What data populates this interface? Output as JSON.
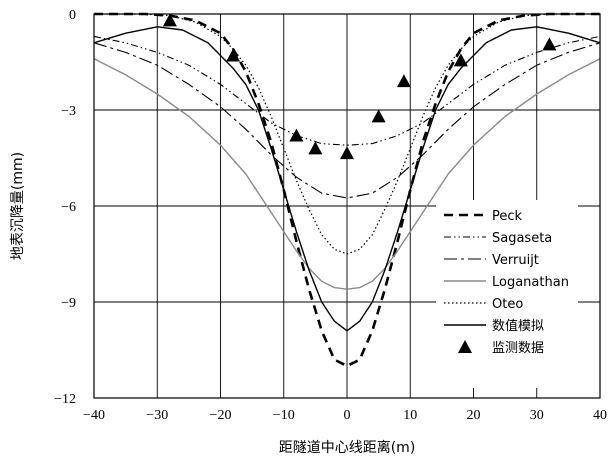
{
  "chart_data": {
    "type": "line",
    "xlabel": "距隧道中心线距离(m)",
    "ylabel": "地表沉降量(mm)",
    "xlim": [
      -40,
      40
    ],
    "ylim": [
      -12,
      0
    ],
    "x_ticks": [
      -40,
      -30,
      -20,
      -10,
      0,
      10,
      20,
      30,
      40
    ],
    "y_ticks": [
      0,
      -3,
      -6,
      -9,
      -12
    ],
    "x_tick_labels": [
      "−40",
      "−30",
      "−20",
      "−10",
      "0",
      "10",
      "20",
      "30",
      "40"
    ],
    "y_tick_labels": [
      "0",
      "−3",
      "−6",
      "−9",
      "−12"
    ],
    "grid": true,
    "legend_position": "right",
    "series": [
      {
        "name": "Peck",
        "style": "thick-dash",
        "color": "#000000",
        "x": [
          -40,
          -32,
          -28,
          -24,
          -20,
          -18,
          -16,
          -14,
          -12,
          -10,
          -8,
          -6,
          -4,
          -2,
          0,
          2,
          4,
          6,
          8,
          10,
          12,
          14,
          16,
          18,
          20,
          24,
          28,
          32,
          40
        ],
        "y": [
          0,
          0,
          -0.05,
          -0.2,
          -0.6,
          -1.1,
          -1.8,
          -2.8,
          -4.0,
          -5.5,
          -7.1,
          -8.6,
          -9.9,
          -10.8,
          -11.0,
          -10.8,
          -9.9,
          -8.6,
          -7.1,
          -5.5,
          -4.0,
          -2.8,
          -1.8,
          -1.1,
          -0.6,
          -0.2,
          -0.05,
          0,
          0
        ]
      },
      {
        "name": "Sagaseta",
        "style": "dash-dot-dot",
        "color": "#000000",
        "x": [
          -40,
          -35,
          -30,
          -25,
          -20,
          -16,
          -12,
          -8,
          -4,
          0,
          4,
          8,
          12,
          16,
          20,
          25,
          30,
          35,
          40
        ],
        "y": [
          -0.7,
          -0.9,
          -1.2,
          -1.6,
          -2.2,
          -2.8,
          -3.4,
          -3.8,
          -4.05,
          -4.1,
          -4.05,
          -3.8,
          -3.4,
          -2.8,
          -2.2,
          -1.6,
          -1.2,
          -0.9,
          -0.7
        ]
      },
      {
        "name": "Verruijt",
        "style": "long-dash-dot",
        "color": "#000000",
        "x": [
          -40,
          -35,
          -30,
          -25,
          -20,
          -16,
          -12,
          -8,
          -4,
          0,
          4,
          8,
          12,
          16,
          20,
          25,
          30,
          35,
          40
        ],
        "y": [
          -0.9,
          -1.2,
          -1.6,
          -2.2,
          -2.9,
          -3.6,
          -4.4,
          -5.1,
          -5.6,
          -5.75,
          -5.6,
          -5.1,
          -4.4,
          -3.6,
          -2.9,
          -2.2,
          -1.6,
          -1.2,
          -0.9
        ]
      },
      {
        "name": "Loganathan",
        "style": "solid-gray",
        "color": "#8a8a8a",
        "x": [
          -40,
          -35,
          -30,
          -25,
          -20,
          -16,
          -12,
          -8,
          -6,
          -4,
          -2,
          0,
          2,
          4,
          6,
          8,
          12,
          16,
          20,
          25,
          30,
          35,
          40
        ],
        "y": [
          -1.4,
          -1.9,
          -2.5,
          -3.2,
          -4.1,
          -5.0,
          -6.2,
          -7.4,
          -7.95,
          -8.35,
          -8.55,
          -8.6,
          -8.55,
          -8.35,
          -7.95,
          -7.4,
          -6.2,
          -5.0,
          -4.1,
          -3.2,
          -2.5,
          -1.9,
          -1.4
        ]
      },
      {
        "name": "Oteo",
        "style": "dotted",
        "color": "#000000",
        "x": [
          -40,
          -32,
          -28,
          -24,
          -20,
          -18,
          -16,
          -14,
          -12,
          -10,
          -8,
          -6,
          -4,
          -2,
          0,
          2,
          4,
          6,
          8,
          10,
          12,
          14,
          16,
          18,
          20,
          24,
          28,
          32,
          40
        ],
        "y": [
          0,
          0,
          -0.05,
          -0.25,
          -0.7,
          -1.1,
          -1.6,
          -2.3,
          -3.2,
          -4.2,
          -5.2,
          -6.1,
          -6.9,
          -7.35,
          -7.5,
          -7.35,
          -6.9,
          -6.1,
          -5.2,
          -4.2,
          -3.2,
          -2.3,
          -1.6,
          -1.1,
          -0.7,
          -0.25,
          -0.05,
          0,
          0
        ]
      },
      {
        "name": "数值模拟",
        "style": "solid",
        "color": "#000000",
        "x": [
          -40,
          -35,
          -30,
          -26,
          -22,
          -18,
          -16,
          -14,
          -12,
          -10,
          -8,
          -6,
          -4,
          -2,
          0,
          2,
          4,
          6,
          8,
          10,
          12,
          14,
          16,
          18,
          22,
          26,
          30,
          35,
          40
        ],
        "y": [
          -0.9,
          -0.6,
          -0.4,
          -0.5,
          -0.9,
          -1.7,
          -2.2,
          -3.0,
          -4.2,
          -5.5,
          -6.8,
          -8.0,
          -9.0,
          -9.6,
          -9.9,
          -9.6,
          -9.0,
          -8.0,
          -6.8,
          -5.5,
          -4.2,
          -3.0,
          -2.2,
          -1.7,
          -0.9,
          -0.5,
          -0.4,
          -0.6,
          -0.9
        ]
      },
      {
        "name": "监测数据",
        "style": "triangle-marker",
        "color": "#000000",
        "x": [
          -28,
          -18,
          -8,
          -5,
          0,
          5,
          9,
          18,
          32
        ],
        "y": [
          -0.2,
          -1.3,
          -3.8,
          -4.2,
          -4.35,
          -3.2,
          -2.1,
          -1.45,
          -0.95
        ]
      }
    ]
  }
}
